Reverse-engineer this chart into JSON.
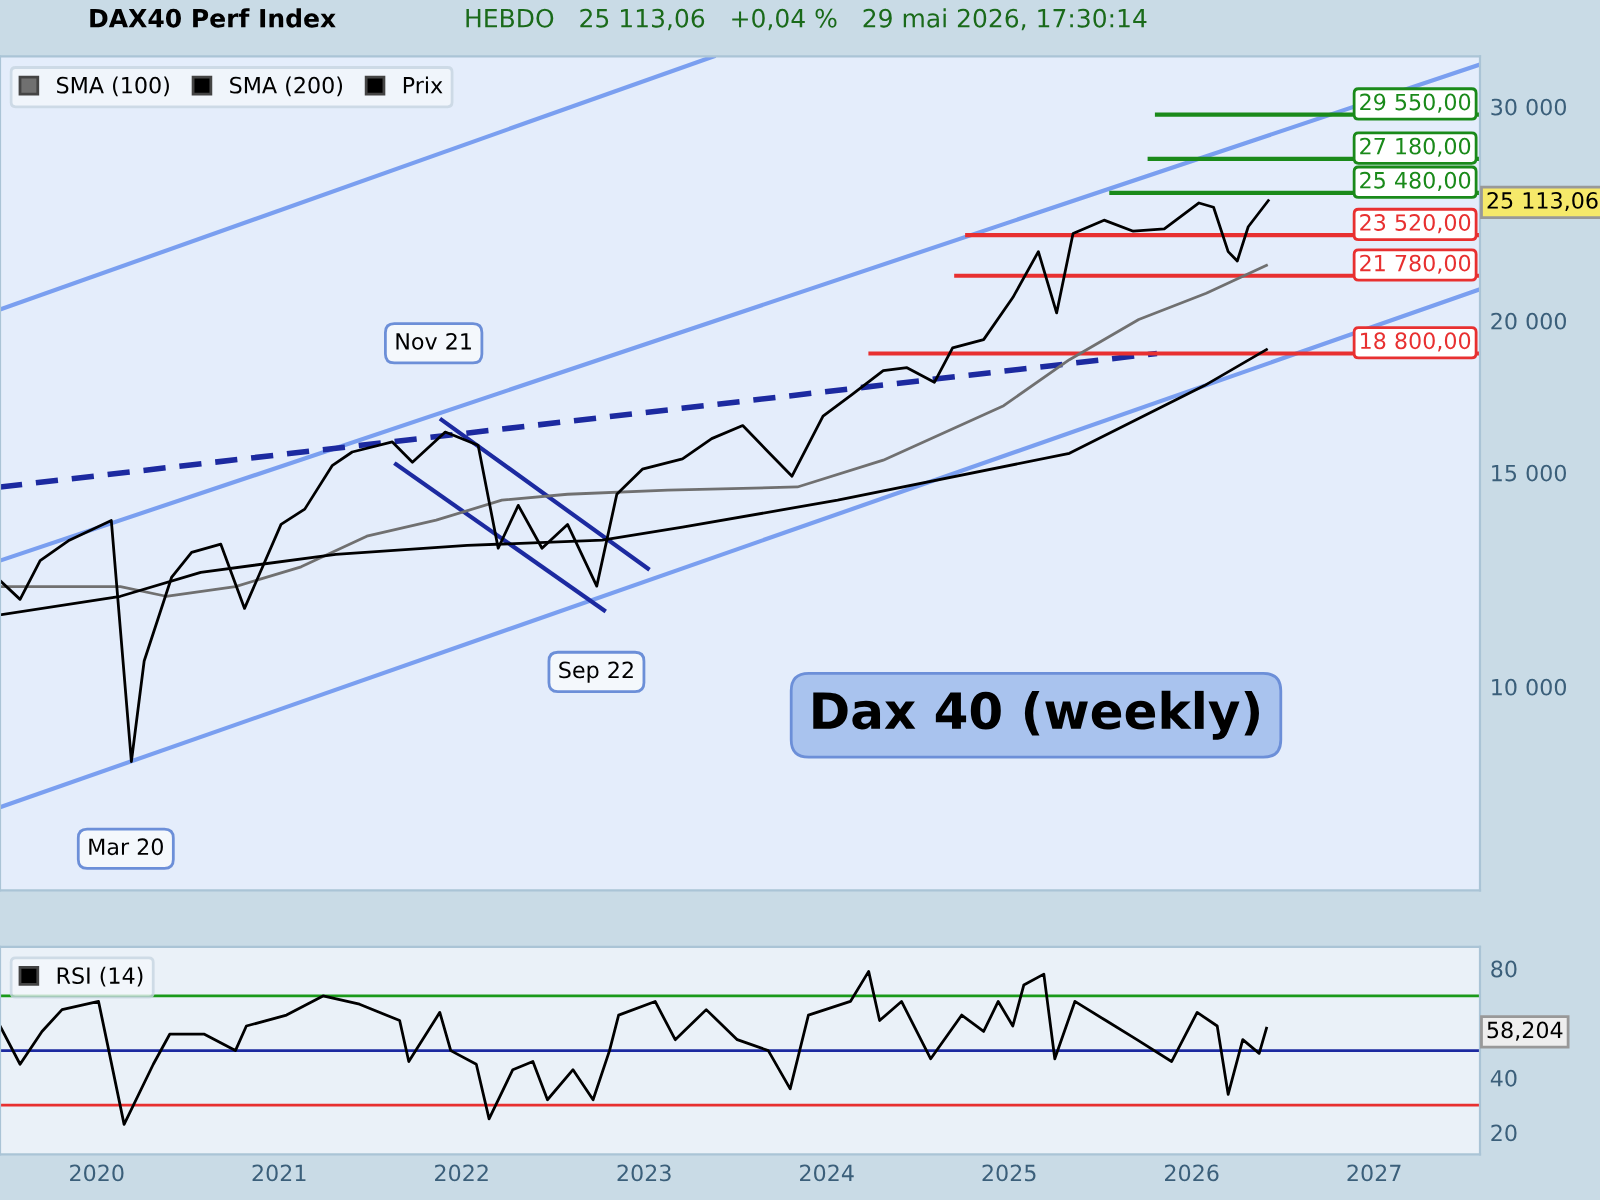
{
  "chart_data": [
    {
      "type": "line",
      "title": "DAX40 Perf Index",
      "subtitle": "HEBDO   25 113,06   +0,04 %   29 mai 2026, 17:30:14",
      "log": "y",
      "legend": "top left",
      "grid": false,
      "tick_labels": "y",
      "xlim": [
        2019.47,
        2027.58
      ],
      "xticks": [
        2020,
        2021,
        2022,
        2023,
        2024,
        2025,
        2026,
        2027
      ],
      "ylim": [
        6800,
        33000
      ],
      "yticks": [
        {
          "value": 10000,
          "label": "10 000"
        },
        {
          "value": 15000,
          "label": "15 000"
        },
        {
          "value": 20000,
          "label": "20 000"
        },
        {
          "value": 30000,
          "label": "30 000"
        }
      ],
      "series": [
        {
          "x": [
            2019.47,
            2023.38
          ],
          "values": [
            20430,
            33000
          ],
          "color": "#7a9ff0"
        },
        {
          "x": [
            2019.47,
            2027.58
          ],
          "values": [
            12700,
            32500
          ],
          "color": "#7a9ff0"
        },
        {
          "x": [
            2019.47,
            2027.58
          ],
          "values": [
            7960,
            21230
          ],
          "color": "#7a9ff0"
        },
        {
          "x": [
            2019.47,
            2025.81
          ],
          "values": [
            14600,
            18800
          ],
          "color": "#1c2aa0",
          "line_style": "dashed"
        },
        {
          "x": [
            2021.89,
            2023.02
          ],
          "values": [
            16580,
            12510
          ],
          "color": "#1c2aa0"
        },
        {
          "x": [
            2021.64,
            2022.78
          ],
          "values": [
            15240,
            11560
          ],
          "color": "#1c2aa0"
        },
        {
          "x": [
            2025.81,
            2027.58
          ],
          "values": [
            29550,
            29550
          ],
          "color": "#1a8a1a"
        },
        {
          "x": [
            2025.77,
            2027.58
          ],
          "values": [
            27180,
            27180
          ],
          "color": "#1a8a1a"
        },
        {
          "x": [
            2025.56,
            2027.58
          ],
          "values": [
            25480,
            25480
          ],
          "color": "#1a8a1a"
        },
        {
          "x": [
            2024.77,
            2027.58
          ],
          "values": [
            23520,
            23520
          ],
          "color": "#e83030"
        },
        {
          "x": [
            2024.71,
            2027.58
          ],
          "values": [
            21780,
            21780
          ],
          "color": "#e83030"
        },
        {
          "x": [
            2024.24,
            2027.58
          ],
          "values": [
            18800,
            18800
          ],
          "color": "#e83030"
        },
        {
          "name": "SMA (100)",
          "color": "#707070",
          "x": [
            2019.47,
            2020.13,
            2020.38,
            2020.76,
            2021.12,
            2021.48,
            2021.86,
            2022.22,
            2022.58,
            2023.13,
            2023.84,
            2024.31,
            2024.97,
            2025.33,
            2025.71,
            2026.08,
            2026.41
          ],
          "values": [
            12090,
            12090,
            11870,
            12090,
            12550,
            13300,
            13710,
            14240,
            14400,
            14510,
            14600,
            15360,
            17030,
            18580,
            20050,
            21070,
            22220
          ]
        },
        {
          "name": "SMA (200)",
          "color": "#000000",
          "x": [
            2019.47,
            2020.13,
            2020.57,
            2021.31,
            2022.03,
            2022.77,
            2023.21,
            2024.06,
            2025.33,
            2026.07,
            2026.41
          ],
          "values": [
            11460,
            11870,
            12420,
            12850,
            13070,
            13200,
            13530,
            14240,
            15560,
            17690,
            18940
          ]
        },
        {
          "name": "Prix",
          "color": "#000000",
          "x": [
            2019.47,
            2019.58,
            2019.69,
            2019.85,
            2020.08,
            2020.19,
            2020.26,
            2020.41,
            2020.52,
            2020.68,
            2020.81,
            2021.01,
            2021.14,
            2021.29,
            2021.4,
            2021.62,
            2021.73,
            2021.91,
            2022.09,
            2022.2,
            2022.31,
            2022.44,
            2022.58,
            2022.74,
            2022.85,
            2022.99,
            2023.21,
            2023.37,
            2023.54,
            2023.68,
            2023.81,
            2023.98,
            2024.14,
            2024.31,
            2024.44,
            2024.59,
            2024.69,
            2024.86,
            2025.02,
            2025.16,
            2025.26,
            2025.35,
            2025.52,
            2025.68,
            2025.85,
            2026.04,
            2026.12,
            2026.2,
            2026.25,
            2026.31,
            2026.42
          ],
          "values": [
            12230,
            11800,
            12700,
            13200,
            13700,
            8680,
            10500,
            12300,
            12900,
            13100,
            11600,
            13600,
            14000,
            15200,
            15600,
            15900,
            15300,
            16200,
            15800,
            13000,
            14100,
            13000,
            13600,
            12100,
            14400,
            15100,
            15400,
            16000,
            16400,
            15600,
            14900,
            16700,
            17400,
            18200,
            18300,
            17800,
            19000,
            19300,
            20900,
            22800,
            20300,
            23600,
            24200,
            23700,
            23800,
            25000,
            24800,
            22800,
            22400,
            23900,
            25113
          ]
        }
      ],
      "annotations": [
        "Nov 21",
        "Sep 22",
        "Mar 20",
        "Dax 40 (weekly)",
        {
          "text": "29 550,00",
          "y": 29550
        },
        {
          "text": "27 180,00",
          "y": 27180
        },
        {
          "text": "25 480,00",
          "y": 25480
        },
        {
          "text": "23 520,00",
          "y": 23520
        },
        {
          "text": "21 780,00",
          "y": 21780
        },
        {
          "text": "18 800,00",
          "y": 18800
        },
        "25 113,06"
      ]
    },
    {
      "type": "line",
      "legend": "top left",
      "grid": false,
      "xlim": [
        2019.47,
        2027.58
      ],
      "xticks": [
        2020,
        2021,
        2022,
        2023,
        2024,
        2025,
        2026,
        2027
      ],
      "ylim": [
        12,
        88
      ],
      "yticks": [
        20,
        40,
        80
      ],
      "ref_lines": [
        {
          "axis": "y",
          "value": 70,
          "color": "#1a9a1a"
        },
        {
          "axis": "y",
          "value": 50,
          "color": "#1c2aa0"
        },
        {
          "axis": "y",
          "value": 30,
          "color": "#e83030"
        }
      ],
      "series": [
        {
          "name": "RSI (14)",
          "color": "#000000",
          "x": [
            2019.47,
            2019.58,
            2019.7,
            2019.81,
            2020.01,
            2020.06,
            2020.15,
            2020.31,
            2020.4,
            2020.59,
            2020.76,
            2020.82,
            2021.04,
            2021.24,
            2021.44,
            2021.66,
            2021.71,
            2021.88,
            2021.94,
            2022.08,
            2022.15,
            2022.28,
            2022.39,
            2022.47,
            2022.61,
            2022.72,
            2022.81,
            2022.86,
            2023.06,
            2023.17,
            2023.34,
            2023.51,
            2023.68,
            2023.8,
            2023.9,
            2024.13,
            2024.23,
            2024.29,
            2024.41,
            2024.57,
            2024.74,
            2024.86,
            2024.94,
            2025.02,
            2025.08,
            2025.19,
            2025.25,
            2025.36,
            2025.53,
            2025.7,
            2025.89,
            2026.03,
            2026.14,
            2026.2,
            2026.28,
            2026.37,
            2026.41
          ],
          "values": [
            59,
            45,
            57,
            65,
            68,
            52,
            23,
            45,
            56,
            56,
            50,
            59,
            63,
            70,
            67,
            61,
            46,
            64,
            50,
            45,
            25,
            43,
            46,
            32,
            43,
            32,
            50,
            63,
            68,
            54,
            65,
            54,
            50,
            36,
            63,
            68,
            79,
            61,
            68,
            47,
            63,
            57,
            68,
            59,
            74,
            78,
            47,
            68,
            61,
            54,
            46,
            64,
            59,
            34,
            54,
            49,
            58.204
          ]
        }
      ],
      "annotations": [
        "58,204"
      ]
    }
  ]
}
